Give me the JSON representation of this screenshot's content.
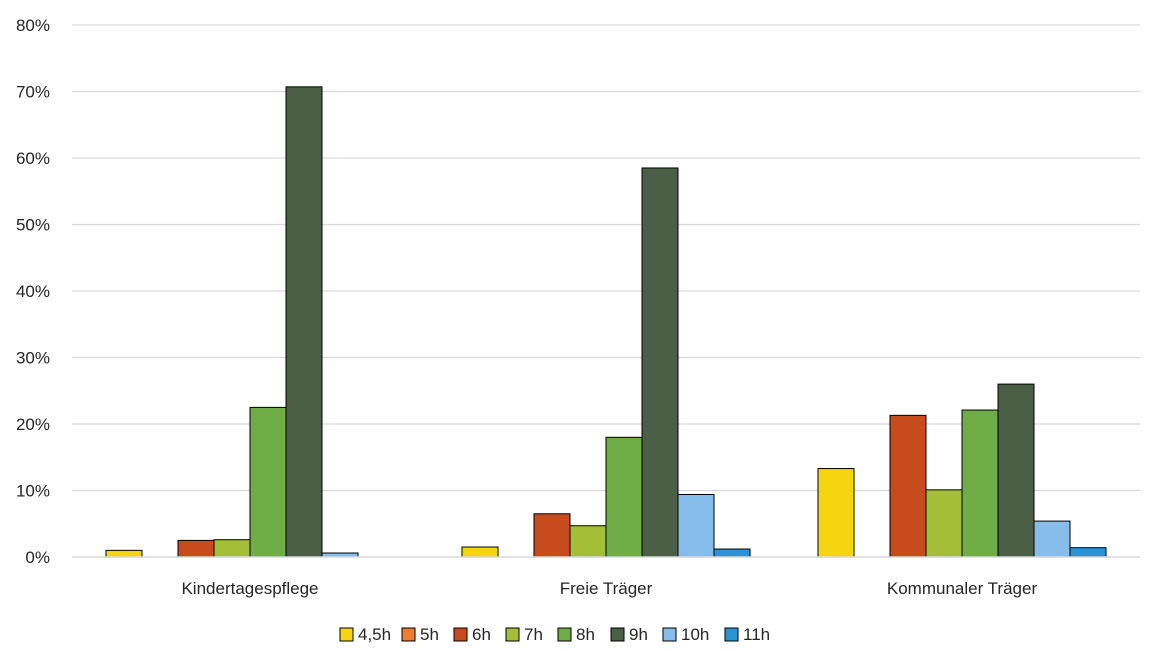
{
  "chart_data": {
    "type": "bar",
    "categories": [
      "Kindertagespflege",
      "Freie Träger",
      "Kommunaler Träger"
    ],
    "series": [
      {
        "name": "4,5h",
        "color": "#F5D50F",
        "values": [
          1.0,
          1.5,
          13.3
        ]
      },
      {
        "name": "5h",
        "color": "#ED7D31",
        "values": [
          0,
          0,
          0
        ]
      },
      {
        "name": "6h",
        "color": "#C84B1E",
        "values": [
          2.5,
          6.5,
          21.3
        ]
      },
      {
        "name": "7h",
        "color": "#A5BE38",
        "values": [
          2.6,
          4.7,
          10.1
        ]
      },
      {
        "name": "8h",
        "color": "#70AD47",
        "values": [
          22.5,
          18.0,
          22.1
        ]
      },
      {
        "name": "9h",
        "color": "#4A5F45",
        "values": [
          70.7,
          58.5,
          26.0
        ]
      },
      {
        "name": "10h",
        "color": "#87BDEB",
        "values": [
          0.6,
          9.4,
          5.4
        ]
      },
      {
        "name": "11h",
        "color": "#2C94D6",
        "values": [
          0,
          1.2,
          1.4
        ]
      }
    ],
    "ylim": [
      0,
      80
    ],
    "yticks": [
      "0%",
      "10%",
      "20%",
      "30%",
      "40%",
      "50%",
      "60%",
      "70%",
      "80%"
    ],
    "grid": true,
    "legend_position": "bottom"
  }
}
